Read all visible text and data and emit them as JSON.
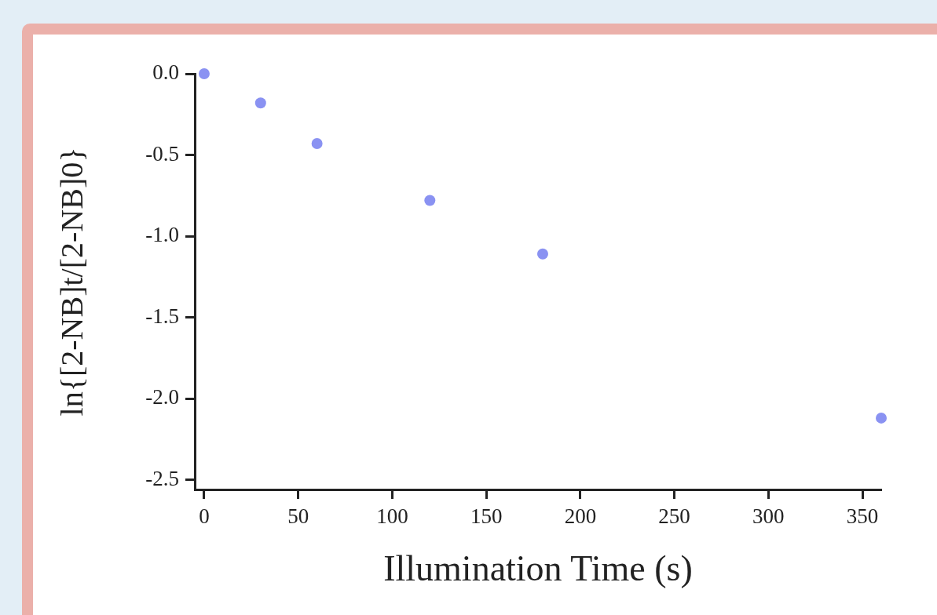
{
  "chart_data": {
    "type": "scatter",
    "xlabel": "Illumination Time (s)",
    "ylabel": "ln{[2-NB]t/[2-NB]0}",
    "x": [
      0,
      30,
      60,
      120,
      180,
      360
    ],
    "series": [
      {
        "color": "#8a92f2",
        "values": [
          0,
          -0.18,
          -0.43,
          -0.78,
          -1.11,
          -2.12
        ]
      }
    ],
    "xlim": [
      -5,
      360
    ],
    "xticks": [
      0,
      50,
      100,
      150,
      200,
      250,
      300,
      350
    ],
    "ylim": [
      -2.56,
      0
    ],
    "yticks": [
      {
        "value": 0,
        "label": "0.0"
      },
      -0.5,
      {
        "value": -1,
        "label": "-1.0"
      },
      -1.5,
      {
        "value": -2,
        "label": "-2.0"
      },
      -2.5
    ],
    "grid": false,
    "legend": false,
    "marker": "circle"
  }
}
